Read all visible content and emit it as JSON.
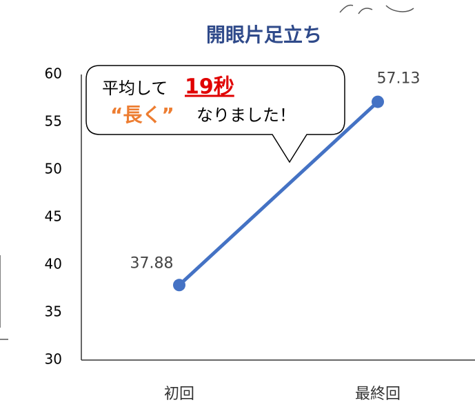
{
  "chart_data": {
    "type": "line",
    "title": "開眼片足立ち",
    "categories": [
      "初回",
      "最終回"
    ],
    "values": [
      37.88,
      57.13
    ],
    "color": "#4472c4",
    "ylim": [
      30,
      60
    ],
    "yticks": [
      30,
      35,
      40,
      45,
      50,
      55,
      60
    ],
    "grid": false,
    "annotation": [
      "平均して",
      "19秒",
      "“長く”",
      "なりました！"
    ]
  }
}
